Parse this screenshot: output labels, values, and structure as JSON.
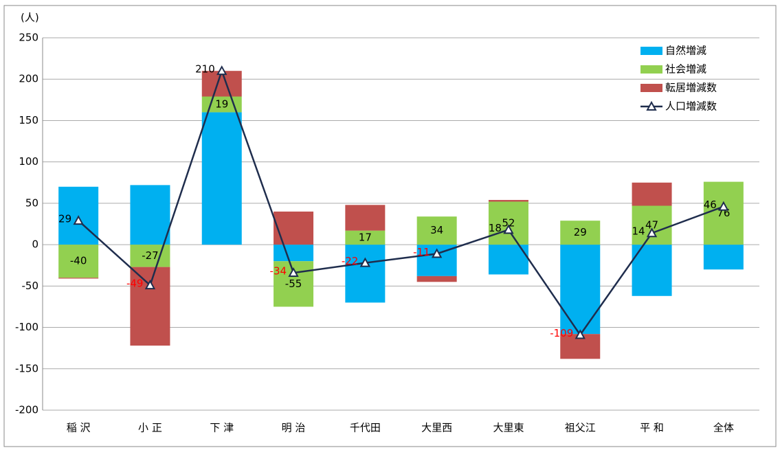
{
  "chart_data": {
    "type": "bar",
    "y_label": "(人)",
    "categories": [
      "稲 沢",
      "小 正",
      "下 津",
      "明 治",
      "千代田",
      "大里西",
      "大里東",
      "祖父江",
      "平 和",
      "全体"
    ],
    "series": [
      {
        "name": "自然増減",
        "type": "bar",
        "color": "#00b0f0",
        "values": [
          70,
          72,
          160,
          -20,
          -70,
          -38,
          -36,
          -108,
          -62,
          -30
        ]
      },
      {
        "name": "社会増減",
        "type": "bar",
        "color": "#92d050",
        "values": [
          -40,
          -27,
          19,
          -55,
          17,
          34,
          52,
          29,
          47,
          76
        ]
      },
      {
        "name": "転居増減数",
        "type": "bar",
        "color": "#c0504d",
        "values": [
          -1,
          -95,
          31,
          40,
          31,
          -7,
          2,
          -30,
          28,
          0
        ]
      },
      {
        "name": "人口増減数",
        "type": "line",
        "color": "#1f2d4d",
        "values": [
          29,
          -49,
          210,
          -34,
          -22,
          -11,
          18,
          -109,
          14,
          46
        ]
      }
    ],
    "ylim": [
      -200,
      250
    ],
    "yticks": [
      -200,
      -150,
      -100,
      -50,
      0,
      50,
      100,
      150,
      200,
      250
    ],
    "grid": true,
    "legend": "top-right",
    "negative_label_color": "#ff0000"
  }
}
